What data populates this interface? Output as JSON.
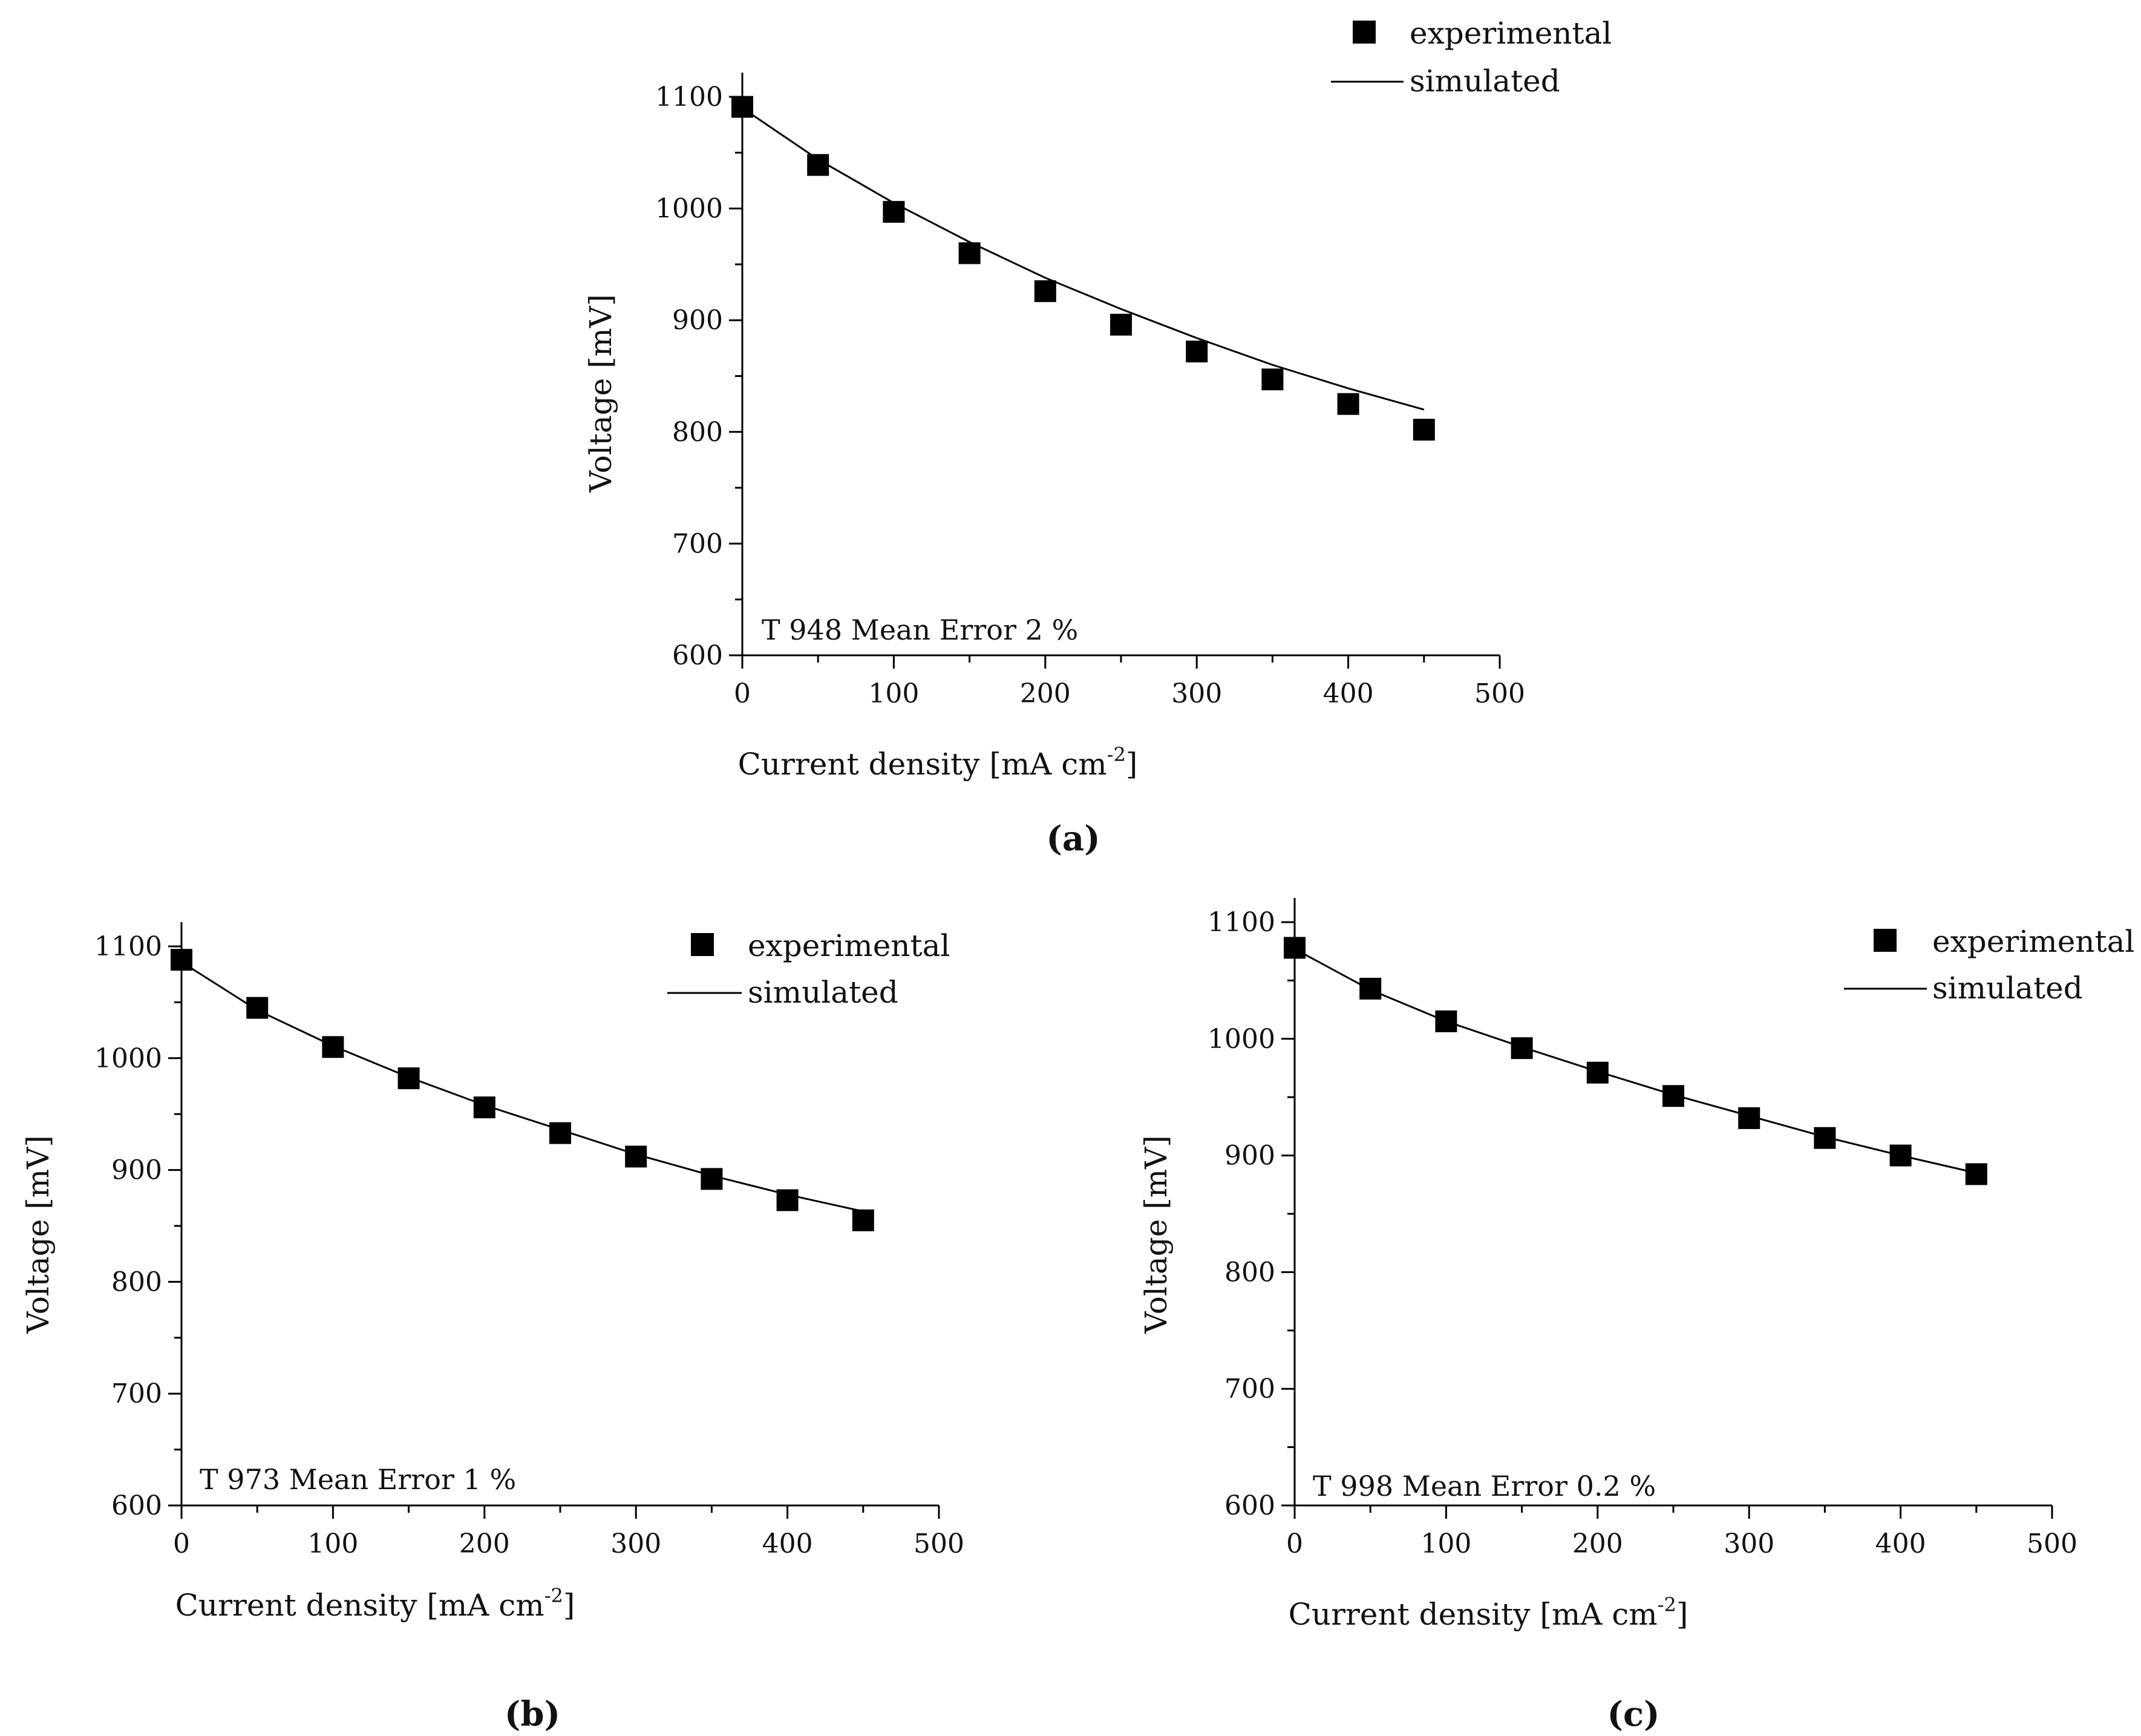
{
  "figure": {
    "panel_labels": [
      "(a)",
      "(b)",
      "(c)"
    ]
  },
  "chart_data": [
    {
      "type": "scatter",
      "panel": "(a)",
      "xlabel": "Current density [mA cm",
      "xlabel_sup": "-2",
      "xlabel_end": "]",
      "ylabel": "Voltage [mV]",
      "xlim": [
        0,
        500
      ],
      "ylim": [
        600,
        1100
      ],
      "xticks": [
        0,
        100,
        200,
        300,
        400,
        500
      ],
      "yticks": [
        600,
        700,
        800,
        900,
        1000,
        1100
      ],
      "annotation": "T 948 Mean Error 2 %",
      "legend": {
        "position": "top-right",
        "entries": [
          "experimental",
          "simulated"
        ]
      },
      "series": [
        {
          "name": "experimental",
          "marker": "square",
          "x": [
            0,
            50,
            100,
            150,
            200,
            250,
            300,
            350,
            400,
            450
          ],
          "y": [
            1091,
            1039,
            997,
            960,
            926,
            896,
            872,
            847,
            825,
            802
          ]
        },
        {
          "name": "simulated",
          "style": "line",
          "x": [
            0,
            50,
            100,
            150,
            200,
            250,
            300,
            350,
            400,
            450
          ],
          "y": [
            1090,
            1044,
            1005,
            970,
            938,
            910,
            884,
            860,
            839,
            820
          ]
        }
      ]
    },
    {
      "type": "scatter",
      "panel": "(b)",
      "xlabel": "Current density [mA cm",
      "xlabel_sup": "-2",
      "xlabel_end": "]",
      "ylabel": "Voltage [mV]",
      "xlim": [
        0,
        500
      ],
      "ylim": [
        600,
        1100
      ],
      "xticks": [
        0,
        100,
        200,
        300,
        400,
        500
      ],
      "yticks": [
        600,
        700,
        800,
        900,
        1000,
        1100
      ],
      "annotation": "T 973 Mean Error 1 %",
      "legend": {
        "position": "top-right",
        "entries": [
          "experimental",
          "simulated"
        ]
      },
      "series": [
        {
          "name": "experimental",
          "marker": "square",
          "x": [
            0,
            50,
            100,
            150,
            200,
            250,
            300,
            350,
            400,
            450
          ],
          "y": [
            1088,
            1045,
            1010,
            982,
            956,
            933,
            912,
            892,
            873,
            855
          ]
        },
        {
          "name": "simulated",
          "style": "line",
          "x": [
            0,
            50,
            100,
            150,
            200,
            250,
            300,
            350,
            400,
            450
          ],
          "y": [
            1086,
            1043,
            1011,
            983,
            958,
            936,
            914,
            895,
            878,
            863
          ]
        }
      ]
    },
    {
      "type": "scatter",
      "panel": "(c)",
      "xlabel": "Current density [mA cm",
      "xlabel_sup": "-2",
      "xlabel_end": "]",
      "ylabel": "Voltage [mV]",
      "xlim": [
        0,
        500
      ],
      "ylim": [
        600,
        1100
      ],
      "xticks": [
        0,
        100,
        200,
        300,
        400,
        500
      ],
      "yticks": [
        600,
        700,
        800,
        900,
        1000,
        1100
      ],
      "annotation": "T 998 Mean Error 0.2 %",
      "legend": {
        "position": "top-right",
        "entries": [
          "experimental",
          "simulated"
        ]
      },
      "series": [
        {
          "name": "experimental",
          "marker": "square",
          "x": [
            0,
            50,
            100,
            150,
            200,
            250,
            300,
            350,
            400,
            450
          ],
          "y": [
            1078,
            1043,
            1015,
            992,
            971,
            951,
            932,
            915,
            900,
            884
          ]
        },
        {
          "name": "simulated",
          "style": "line",
          "x": [
            0,
            50,
            100,
            150,
            200,
            250,
            300,
            350,
            400,
            450
          ],
          "y": [
            1077,
            1042,
            1015,
            993,
            972,
            952,
            934,
            916,
            900,
            885
          ]
        }
      ]
    }
  ]
}
